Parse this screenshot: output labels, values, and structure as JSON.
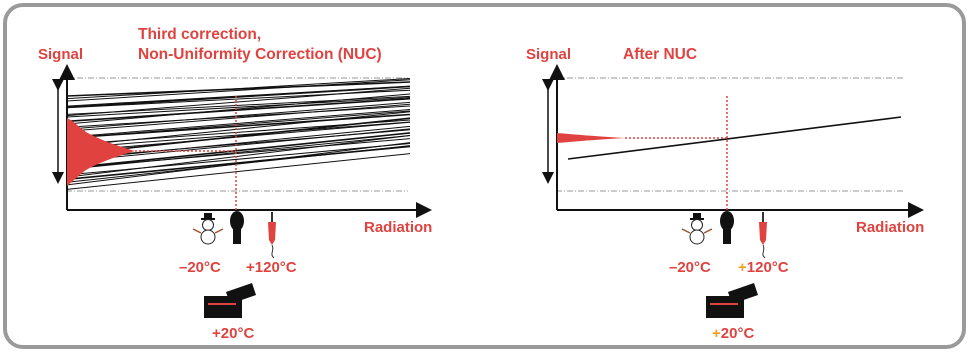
{
  "colors": {
    "accent": "#e0433f",
    "frame": "#9a9a9a",
    "ink": "#111111"
  },
  "left_panel": {
    "y_label": "Signal",
    "title_line1": "Third correction,",
    "title_line2": "Non-Uniformity Correction (NUC)",
    "x_label": "Radiation",
    "cold_temp": "–20°C",
    "hot_temp": "+120°C",
    "camera_temp": "+20°C",
    "icons": [
      "snowman-icon",
      "hair-dryer-icon",
      "soldering-iron-icon",
      "camera-icon"
    ]
  },
  "right_panel": {
    "y_label": "Signal",
    "title": "After NUC",
    "x_label": "Radiation",
    "cold_temp": "–20°C",
    "hot_temp_sign": "+",
    "hot_temp_value": "120°C",
    "camera_temp_sign": "+",
    "camera_temp_value": "20°C",
    "icons": [
      "snowman-icon",
      "hair-dryer-icon",
      "soldering-iron-icon",
      "camera-icon"
    ]
  }
}
